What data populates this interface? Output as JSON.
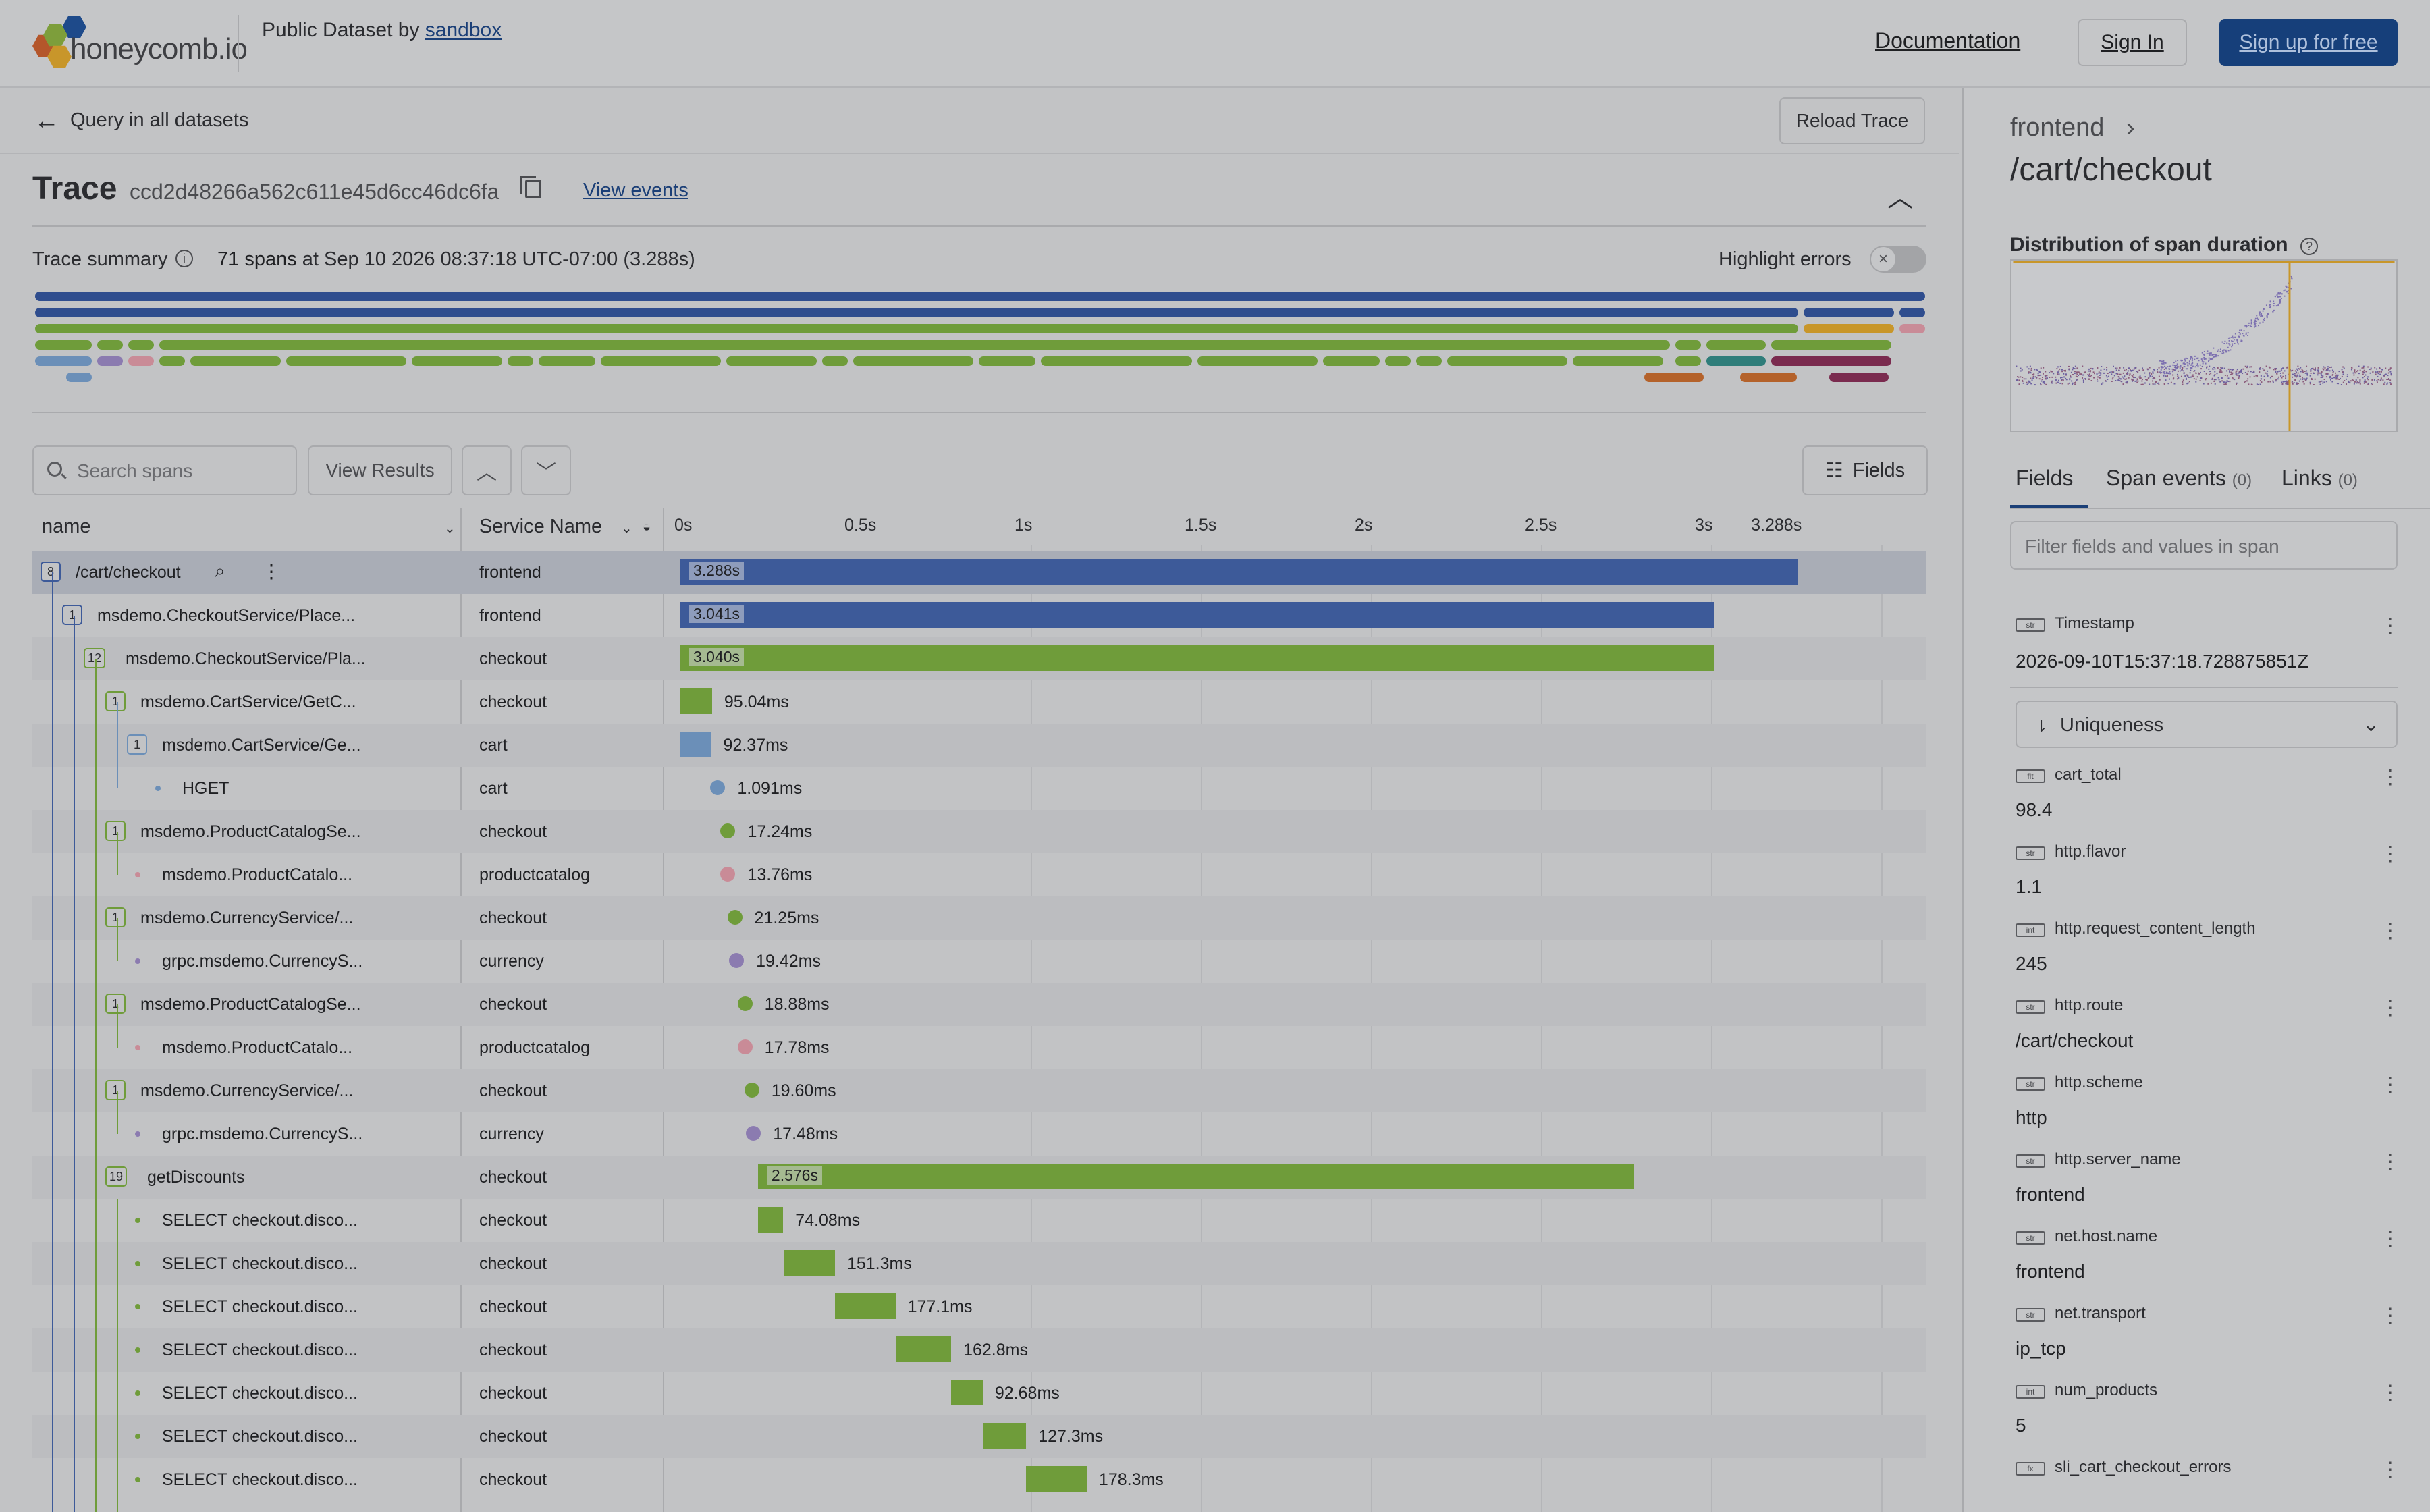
{
  "header": {
    "logo_text": "honeycomb.io",
    "dataset_prefix": "Public Dataset by ",
    "dataset_link": "sandbox",
    "documentation": "Documentation",
    "sign_in": "Sign In",
    "sign_up": "Sign up for free"
  },
  "nav": {
    "back_label": "Query in all datasets",
    "reload": "Reload Trace"
  },
  "trace": {
    "title": "Trace",
    "id": "ccd2d48266a562c611e45d6cc46dc6fa",
    "view_events": "View events",
    "summary_label": "Trace summary",
    "span_count": "71 spans",
    "summary_rest": " at Sep 10 2026 08:37:18 UTC-07:00 (3.288s)",
    "highlight_errors": "Highlight errors"
  },
  "toolbar": {
    "search_placeholder": "Search spans",
    "view_results": "View Results",
    "fields": "Fields"
  },
  "table": {
    "col_name": "name",
    "col_service": "Service Name",
    "ticks": [
      "0s",
      "0.5s",
      "1s",
      "1.5s",
      "2s",
      "2.5s",
      "3s",
      "3.288s"
    ],
    "rows": [
      {
        "name": "/cart/checkout",
        "service": "frontend",
        "badge": "8",
        "depth": 0,
        "start": 0.0,
        "dur": 3.288,
        "label": "3.288s",
        "color": "#3d5a99",
        "inlabel": true
      },
      {
        "name": "msdemo.CheckoutService/Place...",
        "service": "frontend",
        "badge": "1",
        "depth": 1,
        "start": 0.0,
        "dur": 3.041,
        "label": "3.041s",
        "color": "#3d5a99",
        "inlabel": true
      },
      {
        "name": "msdemo.CheckoutService/Pla...",
        "service": "checkout",
        "badge": "12",
        "depth": 2,
        "start": 0.0,
        "dur": 3.04,
        "label": "3.040s",
        "color": "#6f9c3a",
        "inlabel": true
      },
      {
        "name": "msdemo.CartService/GetC...",
        "service": "checkout",
        "badge": "1",
        "depth": 3,
        "start": 0.0,
        "dur": 0.09504,
        "label": "95.04ms",
        "color": "#6f9c3a"
      },
      {
        "name": "msdemo.CartService/Ge...",
        "service": "cart",
        "badge": "1",
        "depth": 4,
        "start": 0.0,
        "dur": 0.09237,
        "label": "92.37ms",
        "color": "#6b8fb8"
      },
      {
        "name": "HGET",
        "service": "cart",
        "badge": "",
        "depth": 5,
        "start": 0.09,
        "dur": 0.001091,
        "label": "1.091ms",
        "color": "#6b8fb8"
      },
      {
        "name": "msdemo.ProductCatalogSe...",
        "service": "checkout",
        "badge": "1",
        "depth": 3,
        "start": 0.12,
        "dur": 0.01724,
        "label": "17.24ms",
        "color": "#6f9c3a"
      },
      {
        "name": "msdemo.ProductCatalo...",
        "service": "productcatalog",
        "badge": "",
        "depth": 4,
        "start": 0.12,
        "dur": 0.01376,
        "label": "13.76ms",
        "color": "#c98b97"
      },
      {
        "name": "msdemo.CurrencyService/...",
        "service": "checkout",
        "badge": "1",
        "depth": 3,
        "start": 0.14,
        "dur": 0.02125,
        "label": "21.25ms",
        "color": "#6f9c3a"
      },
      {
        "name": "grpc.msdemo.CurrencyS...",
        "service": "currency",
        "badge": "",
        "depth": 4,
        "start": 0.145,
        "dur": 0.01942,
        "label": "19.42ms",
        "color": "#8b7bb0"
      },
      {
        "name": "msdemo.ProductCatalogSe...",
        "service": "checkout",
        "badge": "1",
        "depth": 3,
        "start": 0.17,
        "dur": 0.01888,
        "label": "18.88ms",
        "color": "#6f9c3a"
      },
      {
        "name": "msdemo.ProductCatalo...",
        "service": "productcatalog",
        "badge": "",
        "depth": 4,
        "start": 0.17,
        "dur": 0.01778,
        "label": "17.78ms",
        "color": "#c98b97"
      },
      {
        "name": "msdemo.CurrencyService/...",
        "service": "checkout",
        "badge": "1",
        "depth": 3,
        "start": 0.19,
        "dur": 0.0196,
        "label": "19.60ms",
        "color": "#6f9c3a"
      },
      {
        "name": "grpc.msdemo.CurrencyS...",
        "service": "currency",
        "badge": "",
        "depth": 4,
        "start": 0.195,
        "dur": 0.01748,
        "label": "17.48ms",
        "color": "#8b7bb0"
      },
      {
        "name": "getDiscounts",
        "service": "checkout",
        "badge": "19",
        "depth": 3,
        "start": 0.23,
        "dur": 2.576,
        "label": "2.576s",
        "color": "#6f9c3a",
        "inlabel": true
      },
      {
        "name": "SELECT checkout.disco...",
        "service": "checkout",
        "badge": "",
        "depth": 4,
        "start": 0.23,
        "dur": 0.07408,
        "label": "74.08ms",
        "color": "#6f9c3a"
      },
      {
        "name": "SELECT checkout.disco...",
        "service": "checkout",
        "badge": "",
        "depth": 4,
        "start": 0.305,
        "dur": 0.1513,
        "label": "151.3ms",
        "color": "#6f9c3a"
      },
      {
        "name": "SELECT checkout.disco...",
        "service": "checkout",
        "badge": "",
        "depth": 4,
        "start": 0.457,
        "dur": 0.1771,
        "label": "177.1ms",
        "color": "#6f9c3a"
      },
      {
        "name": "SELECT checkout.disco...",
        "service": "checkout",
        "badge": "",
        "depth": 4,
        "start": 0.635,
        "dur": 0.1628,
        "label": "162.8ms",
        "color": "#6f9c3a"
      },
      {
        "name": "SELECT checkout.disco...",
        "service": "checkout",
        "badge": "",
        "depth": 4,
        "start": 0.798,
        "dur": 0.09268,
        "label": "92.68ms",
        "color": "#6f9c3a"
      },
      {
        "name": "SELECT checkout.disco...",
        "service": "checkout",
        "badge": "",
        "depth": 4,
        "start": 0.891,
        "dur": 0.1273,
        "label": "127.3ms",
        "color": "#6f9c3a"
      },
      {
        "name": "SELECT checkout.disco...",
        "service": "checkout",
        "badge": "",
        "depth": 4,
        "start": 1.018,
        "dur": 0.1783,
        "label": "178.3ms",
        "color": "#6f9c3a"
      }
    ]
  },
  "details": {
    "service": "frontend",
    "span_name": "/cart/checkout",
    "distribution_title": "Distribution of span duration",
    "tabs": [
      {
        "label": "Fields",
        "count": ""
      },
      {
        "label": "Span events",
        "count": "(0)"
      },
      {
        "label": "Links",
        "count": "(0)"
      }
    ],
    "filter_placeholder": "Filter fields and values in span",
    "timestamp_type": "str",
    "timestamp_name": "Timestamp",
    "timestamp_value": "2026-09-10T15:37:18.728875851Z",
    "sort_label": "Uniqueness",
    "fields": [
      {
        "type": "flt",
        "name": "cart_total",
        "value": "98.4"
      },
      {
        "type": "str",
        "name": "http.flavor",
        "value": "1.1"
      },
      {
        "type": "int",
        "name": "http.request_content_length",
        "value": "245"
      },
      {
        "type": "str",
        "name": "http.route",
        "value": "/cart/checkout"
      },
      {
        "type": "str",
        "name": "http.scheme",
        "value": "http"
      },
      {
        "type": "str",
        "name": "http.server_name",
        "value": "frontend"
      },
      {
        "type": "str",
        "name": "net.host.name",
        "value": "frontend"
      },
      {
        "type": "str",
        "name": "net.transport",
        "value": "ip_tcp"
      },
      {
        "type": "int",
        "name": "num_products",
        "value": "5"
      },
      {
        "type": "fx",
        "name": "sli_cart_checkout_errors",
        "value": ""
      }
    ]
  },
  "colors": {
    "frontend": "#3d5a99",
    "checkout": "#6f9c3a",
    "cart": "#6b8fb8",
    "productcatalog": "#c98b97",
    "currency": "#8b7bb0",
    "accent": "#163f7a"
  }
}
